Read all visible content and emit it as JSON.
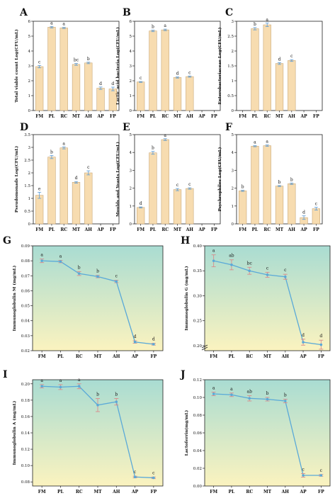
{
  "chart_data": [
    {
      "panel": "A",
      "type": "bar",
      "categories": [
        "FM",
        "PL",
        "RC",
        "MT",
        "AH",
        "AP",
        "FP"
      ],
      "values": [
        2.95,
        5.6,
        5.55,
        3.1,
        3.2,
        1.5,
        1.45
      ],
      "errors": [
        0.08,
        0.05,
        0.04,
        0.06,
        0.05,
        0.08,
        0.12
      ],
      "letters": [
        "c",
        "a",
        "a",
        "bc",
        "b",
        "d",
        "d"
      ],
      "ylabel": "Total viable count Log(CFU/mL)",
      "ylim": [
        0,
        6
      ],
      "yticks": [
        0,
        1,
        2,
        3,
        4,
        5,
        6
      ]
    },
    {
      "panel": "B",
      "type": "bar",
      "categories": [
        "FM",
        "PL",
        "RC",
        "MT",
        "AH",
        "AP",
        "FP"
      ],
      "values": [
        1.92,
        5.35,
        5.42,
        2.22,
        2.28,
        null,
        null
      ],
      "errors": [
        0.03,
        0.05,
        0.05,
        0.04,
        0.04,
        null,
        null
      ],
      "letters": [
        "c",
        "b",
        "a",
        "d",
        "c",
        "",
        ""
      ],
      "ylabel": "Lactic acid bacteria Log(CFU/mL)",
      "ylim": [
        0,
        6
      ],
      "yticks": [
        0,
        1,
        2,
        3,
        4,
        5,
        6
      ]
    },
    {
      "panel": "C",
      "type": "bar",
      "categories": [
        "FM",
        "PL",
        "RC",
        "MT",
        "AH",
        "AP",
        "FP"
      ],
      "values": [
        null,
        2.75,
        2.88,
        1.58,
        1.68,
        null,
        null
      ],
      "errors": [
        null,
        0.04,
        0.06,
        0.03,
        0.03,
        null,
        null
      ],
      "letters": [
        "",
        "b",
        "a",
        "d",
        "c",
        "",
        ""
      ],
      "ylabel": "Enterobacteriaceae Log(CFU/mL)",
      "ylim": [
        0,
        3.0
      ],
      "yticks": [
        0,
        0.5,
        1.0,
        1.5,
        2.0,
        2.5,
        3.0
      ]
    },
    {
      "panel": "D",
      "type": "bar",
      "categories": [
        "FM",
        "PL",
        "RC",
        "MT",
        "AH",
        "AP",
        "FP"
      ],
      "values": [
        1.12,
        2.62,
        2.98,
        1.63,
        2.0,
        null,
        null
      ],
      "errors": [
        0.12,
        0.06,
        0.04,
        0.03,
        0.08,
        null,
        null
      ],
      "letters": [
        "e",
        "b",
        "a",
        "d",
        "c",
        "",
        ""
      ],
      "ylabel": "Pseudomonads Log(CFU/mL)",
      "ylim": [
        0,
        3.5
      ],
      "yticks": [
        0,
        0.5,
        1.0,
        1.5,
        2.0,
        2.5,
        3.0,
        3.5
      ]
    },
    {
      "panel": "E",
      "type": "bar",
      "categories": [
        "FM",
        "PL",
        "RC",
        "MT",
        "AH",
        "AP",
        "FP"
      ],
      "values": [
        0.92,
        3.98,
        4.72,
        1.92,
        1.98,
        null,
        null
      ],
      "errors": [
        0.03,
        0.08,
        0.05,
        0.06,
        0.04,
        null,
        null
      ],
      "letters": [
        "d",
        "b",
        "a",
        "c",
        "c",
        "",
        ""
      ],
      "ylabel": "Moulds and Yeasts Log(CFU/mL)",
      "ylim": [
        0,
        5
      ],
      "yticks": [
        0,
        1,
        2,
        3,
        4,
        5
      ]
    },
    {
      "panel": "F",
      "type": "bar",
      "categories": [
        "FM",
        "PL",
        "RC",
        "MT",
        "AH",
        "AP",
        "FP"
      ],
      "values": [
        1.85,
        4.35,
        4.38,
        2.12,
        2.25,
        0.35,
        0.85
      ],
      "errors": [
        0.03,
        0.03,
        0.04,
        0.03,
        0.04,
        0.1,
        0.08
      ],
      "letters": [
        "b",
        "a",
        "a",
        "b",
        "b",
        "d",
        "c"
      ],
      "ylabel": "Psychrophiles Log(CFU/mL)",
      "ylim": [
        0,
        5
      ],
      "yticks": [
        0,
        1,
        2,
        3,
        4,
        5
      ]
    },
    {
      "panel": "G",
      "type": "line",
      "categories": [
        "FM",
        "PL",
        "RC",
        "MT",
        "AH",
        "AP",
        "FP"
      ],
      "values": [
        0.08,
        0.0795,
        0.0715,
        0.0695,
        0.0662,
        0.0258,
        0.0243
      ],
      "errors": [
        0.0012,
        0.0008,
        0.0013,
        0.0008,
        0.0008,
        0.0008,
        0.0006
      ],
      "letters": [
        "a",
        "a",
        "b",
        "b",
        "c",
        "d",
        "d"
      ],
      "ylabel": "Immunoglobulin M (mg/mL)",
      "ylim": [
        0.02,
        0.09
      ],
      "yticks": [
        "0.02",
        "0.03",
        "0.04",
        "0.05",
        "0.06",
        "0.07",
        "0.08",
        "0.09"
      ]
    },
    {
      "panel": "H",
      "type": "line",
      "categories": [
        "FM",
        "PL",
        "RC",
        "MT",
        "AH",
        "AP",
        "FP"
      ],
      "values": [
        0.37,
        0.362,
        0.35,
        0.342,
        0.338,
        0.207,
        0.202
      ],
      "errors": [
        0.012,
        0.01,
        0.007,
        0.005,
        0.005,
        0.006,
        0.009
      ],
      "letters": [
        "a",
        "ab",
        "bc",
        "c",
        "c",
        "d",
        "d"
      ],
      "ylabel": "Immunoglobulin G (mg/mL)",
      "ylim": [
        0.19,
        0.4
      ],
      "yticks": [
        "0.20",
        "0.25",
        "0.30",
        "0.35",
        "0.40"
      ],
      "axis_break": true
    },
    {
      "panel": "I",
      "type": "line",
      "categories": [
        "FM",
        "PL",
        "RC",
        "MT",
        "AH",
        "AP",
        "FP"
      ],
      "values": [
        0.197,
        0.196,
        0.197,
        0.174,
        0.178,
        0.086,
        0.085
      ],
      "errors": [
        0.002,
        0.003,
        0.003,
        0.008,
        0.004,
        0.001,
        0.001
      ],
      "letters": [
        "a",
        "a",
        "a",
        "b",
        "b",
        "c",
        "c"
      ],
      "ylabel": "Immunoglobulin A (mg/mL)",
      "ylim": [
        0.075,
        0.205
      ],
      "yticks": [
        "0.08",
        "0.10",
        "0.12",
        "0.14",
        "0.16",
        "0.18",
        "0.20"
      ]
    },
    {
      "panel": "J",
      "type": "line",
      "categories": [
        "FM",
        "PL",
        "RC",
        "MT",
        "AH",
        "AP",
        "FP"
      ],
      "values": [
        0.104,
        0.103,
        0.099,
        0.098,
        0.096,
        0.012,
        0.012
      ],
      "errors": [
        0.002,
        0.002,
        0.003,
        0.002,
        0.002,
        0.002,
        0.001
      ],
      "letters": [
        "a",
        "a",
        "ab",
        "b",
        "b",
        "c",
        "c"
      ],
      "ylabel": "Lactoferrin(mg/mL)",
      "ylim": [
        0.0,
        0.12
      ],
      "yticks": [
        "0.00",
        "0.02",
        "0.04",
        "0.06",
        "0.08",
        "0.10",
        "0.12"
      ]
    }
  ],
  "colors": {
    "bar_fill": "#f7dcb0",
    "bar_stroke": "#c9a878",
    "error_bar": "#5b9bd5",
    "line": "#5aa9d8",
    "line_error": "#d98b8b",
    "gradient_top": "#a9dcd2",
    "gradient_bottom": "#fbf3bf"
  }
}
